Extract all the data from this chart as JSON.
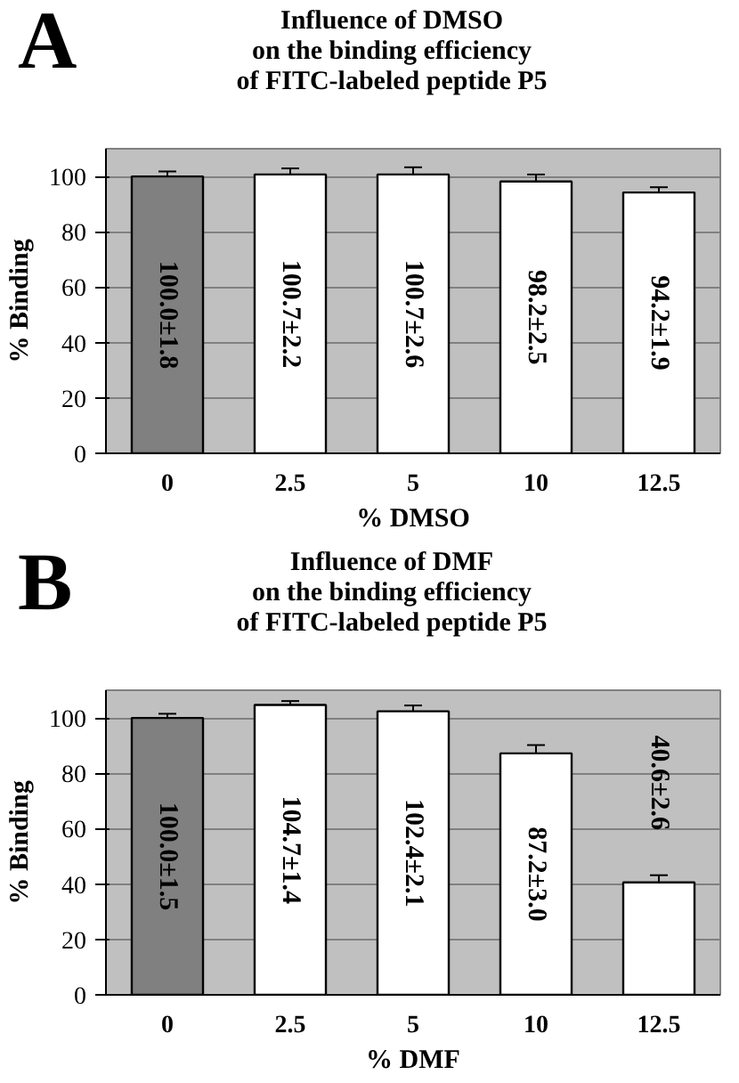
{
  "chart_data": [
    {
      "type": "bar",
      "title": "Influence of DMSO\non the binding efficiency\nof FITC-labeled peptide P5",
      "annotations": [
        "A"
      ],
      "xlabel": "% DMSO",
      "ylabel": "% Binding",
      "categories": [
        "0",
        "2.5",
        "5",
        "10",
        "12.5"
      ],
      "values": [
        100.0,
        100.7,
        100.7,
        98.2,
        94.2
      ],
      "errors": [
        1.8,
        2.2,
        2.6,
        2.5,
        1.9
      ],
      "value_labels": [
        "100.0±1.8",
        "100.7±2.2",
        "100.7±2.6",
        "98.2±2.5",
        "94.2±1.9"
      ],
      "colors": [
        "#808080",
        "#ffffff",
        "#ffffff",
        "#ffffff",
        "#ffffff"
      ],
      "ylim": [
        0,
        110
      ],
      "yticks": [
        0,
        20,
        40,
        60,
        80,
        100
      ],
      "grid": "y"
    },
    {
      "type": "bar",
      "title": "Influence of DMF\non the binding efficiency\nof FITC-labeled peptide P5",
      "annotations": [
        "B"
      ],
      "xlabel": "% DMF",
      "ylabel": "% Binding",
      "categories": [
        "0",
        "2.5",
        "5",
        "10",
        "12.5"
      ],
      "values": [
        100.0,
        104.7,
        102.4,
        87.2,
        40.6
      ],
      "errors": [
        1.5,
        1.4,
        2.1,
        3.0,
        2.6
      ],
      "value_labels": [
        "100.0±1.5",
        "104.7±1.4",
        "102.4±2.1",
        "87.2±3.0",
        "40.6±2.6"
      ],
      "colors": [
        "#808080",
        "#ffffff",
        "#ffffff",
        "#ffffff",
        "#ffffff"
      ],
      "ylim": [
        0,
        110
      ],
      "yticks": [
        0,
        20,
        40,
        60,
        80,
        100
      ],
      "grid": "y"
    }
  ]
}
